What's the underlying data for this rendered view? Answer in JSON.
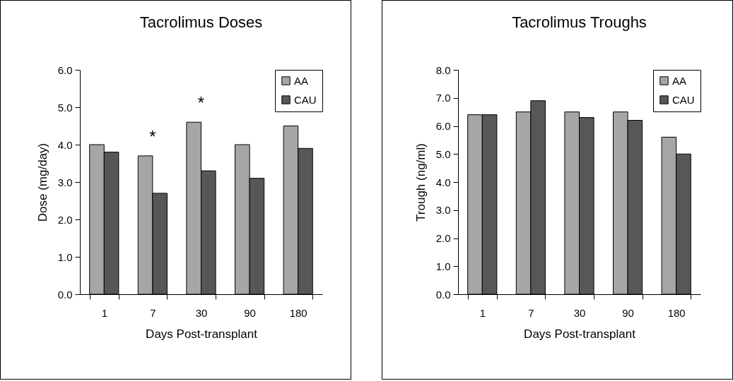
{
  "chart_data": [
    {
      "type": "bar",
      "title": "Tacrolimus Doses",
      "xlabel": "Days Post-transplant",
      "ylabel": "Dose (mg/day)",
      "categories": [
        "1",
        "7",
        "30",
        "90",
        "180"
      ],
      "series": [
        {
          "name": "AA",
          "color": "#a6a6a6",
          "values": [
            4.0,
            3.7,
            4.6,
            4.0,
            4.5
          ]
        },
        {
          "name": "CAU",
          "color": "#575757",
          "values": [
            3.8,
            2.7,
            3.3,
            3.1,
            3.9
          ]
        }
      ],
      "ylim": [
        0,
        6
      ],
      "yticks": [
        {
          "value": 0,
          "label": "0.0"
        },
        {
          "value": 1,
          "label": "1.0"
        },
        {
          "value": 2,
          "label": "2.0"
        },
        {
          "value": 3,
          "label": "3.0"
        },
        {
          "value": 4,
          "label": "4.0"
        },
        {
          "value": 5,
          "label": "5.0"
        },
        {
          "value": 6,
          "label": "6.0"
        }
      ],
      "annotations": [
        {
          "text": "*",
          "x": "7",
          "y": 3.7
        },
        {
          "text": "*",
          "x": "30",
          "y": 4.6
        }
      ],
      "legend": "top right"
    },
    {
      "type": "bar",
      "title": "Tacrolimus Troughs",
      "xlabel": "Days Post-transplant",
      "ylabel": "Trough (ng/ml)",
      "categories": [
        "1",
        "7",
        "30",
        "90",
        "180"
      ],
      "series": [
        {
          "name": "AA",
          "color": "#a6a6a6",
          "values": [
            6.4,
            6.5,
            6.5,
            6.5,
            5.6
          ]
        },
        {
          "name": "CAU",
          "color": "#575757",
          "values": [
            6.4,
            6.9,
            6.3,
            6.2,
            5.0
          ]
        }
      ],
      "ylim": [
        0,
        8
      ],
      "yticks": [
        {
          "value": 0,
          "label": "0.0"
        },
        {
          "value": 1,
          "label": "1.0"
        },
        {
          "value": 2,
          "label": "2.0"
        },
        {
          "value": 3,
          "label": "3.0"
        },
        {
          "value": 4,
          "label": "4.0"
        },
        {
          "value": 5,
          "label": "5.0"
        },
        {
          "value": 6,
          "label": "6.0"
        },
        {
          "value": 7,
          "label": "7.0"
        },
        {
          "value": 8,
          "label": "8.0"
        }
      ],
      "legend": "top right"
    }
  ]
}
